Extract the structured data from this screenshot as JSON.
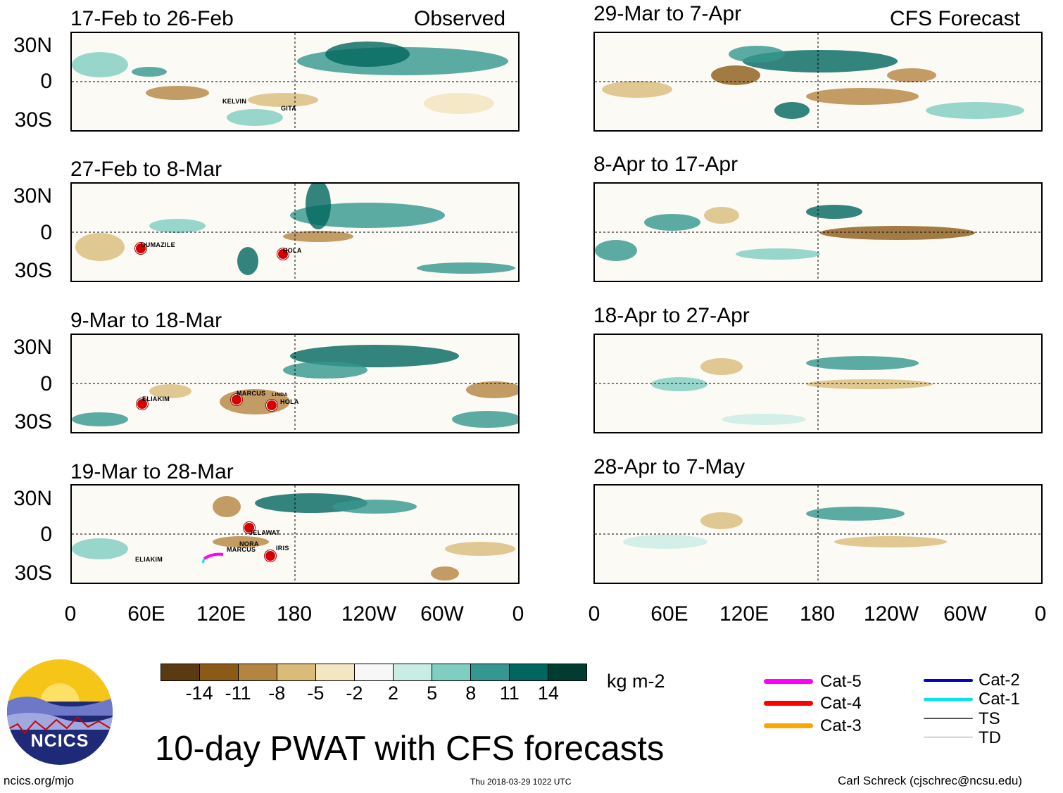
{
  "header": {
    "observed_label": "Observed",
    "forecast_label": "CFS Forecast"
  },
  "left_panels": [
    {
      "title": "17-Feb to 26-Feb",
      "storms": [
        "KELVIN",
        "GITA"
      ]
    },
    {
      "title": "27-Feb to 8-Mar",
      "storms": [
        "DUMAZILE",
        "HOLA"
      ]
    },
    {
      "title": "9-Mar to 18-Mar",
      "storms": [
        "ELIAKIM",
        "MARCUS",
        "LINDA",
        "HOLA"
      ]
    },
    {
      "title": "19-Mar to 28-Mar",
      "storms": [
        "JELAWAT",
        "NORA",
        "MARCUS",
        "IRIS",
        "ELIAKIM"
      ]
    }
  ],
  "right_panels": [
    {
      "title": "29-Mar to 7-Apr"
    },
    {
      "title": "8-Apr to 17-Apr"
    },
    {
      "title": "18-Apr to 27-Apr"
    },
    {
      "title": "28-Apr to 7-May"
    }
  ],
  "lat_labels": [
    "30N",
    "0",
    "30S"
  ],
  "lon_labels": [
    "0",
    "60E",
    "120E",
    "180",
    "120W",
    "60W",
    "0"
  ],
  "colorbar": {
    "colors": [
      "#5a3a12",
      "#8c5a18",
      "#b48540",
      "#d9bb7a",
      "#f3e6c2",
      "#f7f7f7",
      "#c9ece5",
      "#80cdc1",
      "#35978f",
      "#01665e",
      "#003c30"
    ],
    "ticks": [
      "-14",
      "-11",
      "-8",
      "-5",
      "-2",
      "2",
      "5",
      "8",
      "11",
      "14"
    ],
    "unit": "kg m-2"
  },
  "legend": [
    {
      "label": "Cat-5",
      "color": "#ff00ff"
    },
    {
      "label": "Cat-4",
      "color": "#ff0000"
    },
    {
      "label": "Cat-3",
      "color": "#ffa500"
    },
    {
      "label": "Cat-2",
      "color": "#0000cd"
    },
    {
      "label": "Cat-1",
      "color": "#00e5ee"
    },
    {
      "label": "TS",
      "color": "#555555"
    },
    {
      "label": "TD",
      "color": "#999999"
    }
  ],
  "logo_text": "NCICS",
  "main_title": "10-day PWAT with CFS forecasts",
  "footer": {
    "url": "ncics.org/mjo",
    "timestamp": "Thu 2018-03-29 1022 UTC",
    "author": "Carl Schreck (cjschrec@ncsu.edu)"
  }
}
